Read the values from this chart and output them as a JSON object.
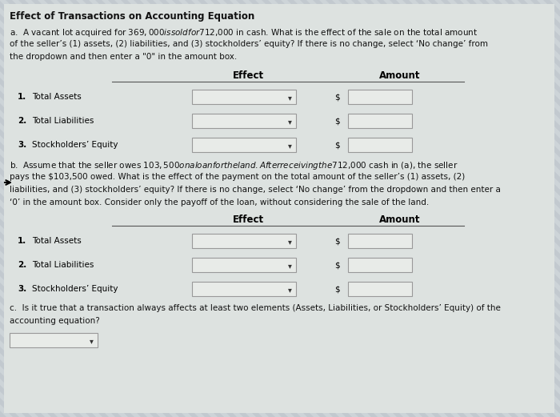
{
  "title": "Effect of Transactions on Accounting Equation",
  "section_a_lines": [
    "a.  A vacant lot acquired for $369,000 is sold for $712,000 in cash. What is the effect of the sale on the total amount",
    "of the seller’s (1) assets, (2) liabilities, and (3) stockholders’ equity? If there is no change, select ‘No change’ from",
    "the dropdown and then enter a \"0\" in the amount box."
  ],
  "section_b_lines": [
    "b.  Assume that the seller owes $103,500 on a loan for the land. After receiving the $712,000 cash in (a), the seller",
    "pays the $103,500 owed. What is the effect of the payment on the total amount of the seller’s (1) assets, (2)",
    "liabilities, and (3) stockholders’ equity? If there is no change, select ‘No change’ from the dropdown and then enter a",
    "‘0’ in the amount box. Consider only the payoff of the loan, without considering the sale of the land."
  ],
  "section_c_lines": [
    "c.  Is it true that a transaction always affects at least two elements (Assets, Liabilities, or Stockholders’ Equity) of the",
    "accounting equation?"
  ],
  "col_effect": "Effect",
  "col_amount": "Amount",
  "rows": [
    {
      "num": "1.",
      "label": "Total Assets"
    },
    {
      "num": "2.",
      "label": "Total Liabilities"
    },
    {
      "num": "3.",
      "label": "Stockholders’ Equity"
    }
  ],
  "bg_light": "#cdd4d8",
  "bg_dark": "#b8c0c8",
  "content_bg": "#dde2e0",
  "box_fill": "#e8ebe8",
  "box_edge": "#999999",
  "title_fontsize": 8.5,
  "body_fontsize": 7.5,
  "label_fontsize": 7.5,
  "header_fontsize": 8.5
}
